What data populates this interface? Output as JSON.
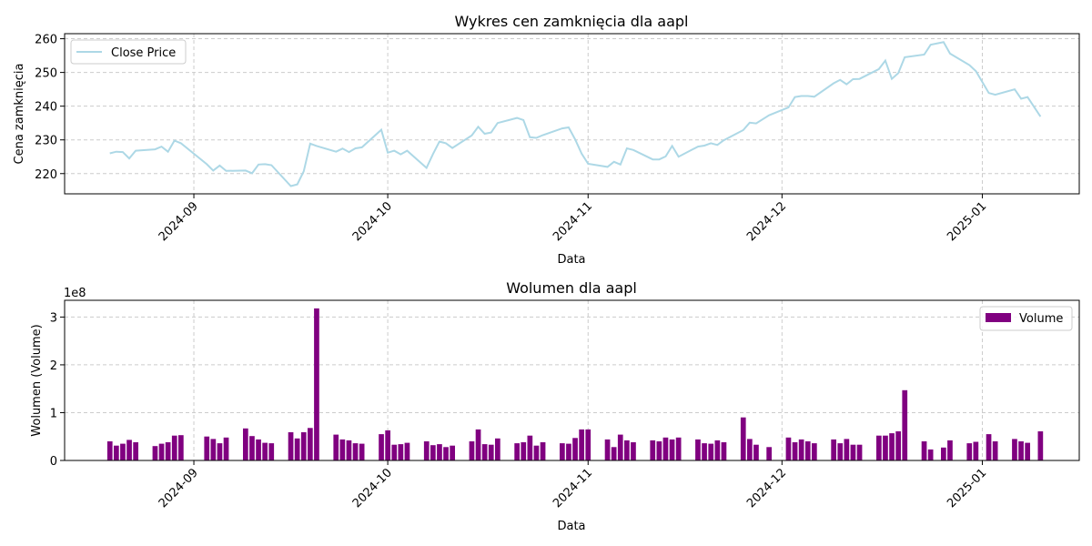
{
  "chart_data": [
    {
      "type": "line",
      "title": "Wykres cen zamknięcia dla aapl",
      "xlabel": "Data",
      "ylabel": "Cena zamknięcia",
      "ylim": [
        214,
        261.5
      ],
      "yticks": [
        220,
        230,
        240,
        250,
        260
      ],
      "xticks": [
        "2024-09",
        "2024-10",
        "2024-11",
        "2024-12",
        "2025-01"
      ],
      "grid": true,
      "legend": {
        "placement": "upper-left",
        "entries": [
          "Close Price"
        ]
      },
      "colors": {
        "line": "#add8e6"
      },
      "series": [
        {
          "name": "Close Price",
          "x": [
            "2024-08-19",
            "2024-08-20",
            "2024-08-21",
            "2024-08-22",
            "2024-08-23",
            "2024-08-26",
            "2024-08-27",
            "2024-08-28",
            "2024-08-29",
            "2024-08-30",
            "2024-09-03",
            "2024-09-04",
            "2024-09-05",
            "2024-09-06",
            "2024-09-09",
            "2024-09-10",
            "2024-09-11",
            "2024-09-12",
            "2024-09-13",
            "2024-09-16",
            "2024-09-17",
            "2024-09-18",
            "2024-09-19",
            "2024-09-20",
            "2024-09-23",
            "2024-09-24",
            "2024-09-25",
            "2024-09-26",
            "2024-09-27",
            "2024-09-30",
            "2024-10-01",
            "2024-10-02",
            "2024-10-03",
            "2024-10-04",
            "2024-10-07",
            "2024-10-08",
            "2024-10-09",
            "2024-10-10",
            "2024-10-11",
            "2024-10-14",
            "2024-10-15",
            "2024-10-16",
            "2024-10-17",
            "2024-10-18",
            "2024-10-21",
            "2024-10-22",
            "2024-10-23",
            "2024-10-24",
            "2024-10-25",
            "2024-10-28",
            "2024-10-29",
            "2024-10-30",
            "2024-10-31",
            "2024-11-01",
            "2024-11-04",
            "2024-11-05",
            "2024-11-06",
            "2024-11-07",
            "2024-11-08",
            "2024-11-11",
            "2024-11-12",
            "2024-11-13",
            "2024-11-14",
            "2024-11-15",
            "2024-11-18",
            "2024-11-19",
            "2024-11-20",
            "2024-11-21",
            "2024-11-22",
            "2024-11-25",
            "2024-11-26",
            "2024-11-27",
            "2024-11-29",
            "2024-12-02",
            "2024-12-03",
            "2024-12-04",
            "2024-12-05",
            "2024-12-06",
            "2024-12-09",
            "2024-12-10",
            "2024-12-11",
            "2024-12-12",
            "2024-12-13",
            "2024-12-16",
            "2024-12-17",
            "2024-12-18",
            "2024-12-19",
            "2024-12-20",
            "2024-12-23",
            "2024-12-24",
            "2024-12-26",
            "2024-12-27",
            "2024-12-30",
            "2024-12-31",
            "2025-01-02",
            "2025-01-03",
            "2025-01-06",
            "2025-01-07",
            "2025-01-08",
            "2025-01-10"
          ],
          "values": [
            226.0,
            226.5,
            226.4,
            224.5,
            226.8,
            227.2,
            228.0,
            226.5,
            229.8,
            229.0,
            222.8,
            220.9,
            222.4,
            220.8,
            220.9,
            220.1,
            222.7,
            222.8,
            222.5,
            216.3,
            216.8,
            220.7,
            228.9,
            228.2,
            226.5,
            227.4,
            226.4,
            227.5,
            227.8,
            233.0,
            226.2,
            226.8,
            225.7,
            226.8,
            221.7,
            225.8,
            229.5,
            229.0,
            227.6,
            231.3,
            233.9,
            231.8,
            232.2,
            235.0,
            236.5,
            235.9,
            230.8,
            230.6,
            231.4,
            233.4,
            233.7,
            230.1,
            225.9,
            222.9,
            222.0,
            223.5,
            222.7,
            227.5,
            227.0,
            224.2,
            224.2,
            225.1,
            228.2,
            225.0,
            228.0,
            228.3,
            229.0,
            228.5,
            229.9,
            232.9,
            235.1,
            234.9,
            237.3,
            239.6,
            242.7,
            243.0,
            243.0,
            242.8,
            246.8,
            247.8,
            246.5,
            248.0,
            248.1,
            251.0,
            253.5,
            248.1,
            249.8,
            254.5,
            255.3,
            258.2,
            259.0,
            255.6,
            252.2,
            250.4,
            243.9,
            243.4,
            245.0,
            242.2,
            242.7,
            236.9
          ]
        }
      ]
    },
    {
      "type": "bar",
      "title": "Wolumen dla aapl",
      "xlabel": "Data",
      "ylabel": "Wolumen (Volume)",
      "offset_label": "1e8",
      "ylim": [
        0,
        3.35
      ],
      "yticks": [
        0,
        1,
        2,
        3
      ],
      "xticks": [
        "2024-09",
        "2024-10",
        "2024-11",
        "2024-12",
        "2025-01"
      ],
      "grid": true,
      "legend": {
        "placement": "upper-right",
        "entries": [
          "Volume"
        ]
      },
      "colors": {
        "bar": "#800080"
      },
      "series": [
        {
          "name": "Volume",
          "x": [
            "2024-08-19",
            "2024-08-20",
            "2024-08-21",
            "2024-08-22",
            "2024-08-23",
            "2024-08-26",
            "2024-08-27",
            "2024-08-28",
            "2024-08-29",
            "2024-08-30",
            "2024-09-03",
            "2024-09-04",
            "2024-09-05",
            "2024-09-06",
            "2024-09-09",
            "2024-09-10",
            "2024-09-11",
            "2024-09-12",
            "2024-09-13",
            "2024-09-16",
            "2024-09-17",
            "2024-09-18",
            "2024-09-19",
            "2024-09-20",
            "2024-09-23",
            "2024-09-24",
            "2024-09-25",
            "2024-09-26",
            "2024-09-27",
            "2024-09-30",
            "2024-10-01",
            "2024-10-02",
            "2024-10-03",
            "2024-10-04",
            "2024-10-07",
            "2024-10-08",
            "2024-10-09",
            "2024-10-10",
            "2024-10-11",
            "2024-10-14",
            "2024-10-15",
            "2024-10-16",
            "2024-10-17",
            "2024-10-18",
            "2024-10-21",
            "2024-10-22",
            "2024-10-23",
            "2024-10-24",
            "2024-10-25",
            "2024-10-28",
            "2024-10-29",
            "2024-10-30",
            "2024-10-31",
            "2024-11-01",
            "2024-11-04",
            "2024-11-05",
            "2024-11-06",
            "2024-11-07",
            "2024-11-08",
            "2024-11-11",
            "2024-11-12",
            "2024-11-13",
            "2024-11-14",
            "2024-11-15",
            "2024-11-18",
            "2024-11-19",
            "2024-11-20",
            "2024-11-21",
            "2024-11-22",
            "2024-11-25",
            "2024-11-26",
            "2024-11-27",
            "2024-11-29",
            "2024-12-02",
            "2024-12-03",
            "2024-12-04",
            "2024-12-05",
            "2024-12-06",
            "2024-12-09",
            "2024-12-10",
            "2024-12-11",
            "2024-12-12",
            "2024-12-13",
            "2024-12-16",
            "2024-12-17",
            "2024-12-18",
            "2024-12-19",
            "2024-12-20",
            "2024-12-23",
            "2024-12-24",
            "2024-12-26",
            "2024-12-27",
            "2024-12-30",
            "2024-12-31",
            "2025-01-02",
            "2025-01-03",
            "2025-01-06",
            "2025-01-07",
            "2025-01-08",
            "2025-01-10"
          ],
          "values": [
            0.4,
            0.31,
            0.35,
            0.43,
            0.38,
            0.3,
            0.35,
            0.38,
            0.52,
            0.53,
            0.5,
            0.45,
            0.36,
            0.48,
            0.67,
            0.51,
            0.44,
            0.37,
            0.36,
            0.59,
            0.46,
            0.59,
            0.68,
            3.18,
            0.54,
            0.44,
            0.42,
            0.36,
            0.35,
            0.55,
            0.63,
            0.33,
            0.34,
            0.37,
            0.4,
            0.32,
            0.34,
            0.28,
            0.31,
            0.4,
            0.65,
            0.34,
            0.33,
            0.46,
            0.36,
            0.38,
            0.52,
            0.31,
            0.38,
            0.36,
            0.35,
            0.47,
            0.65,
            0.65,
            0.44,
            0.28,
            0.54,
            0.42,
            0.38,
            0.42,
            0.4,
            0.48,
            0.44,
            0.48,
            0.44,
            0.36,
            0.35,
            0.42,
            0.38,
            0.9,
            0.45,
            0.33,
            0.28,
            0.48,
            0.38,
            0.44,
            0.4,
            0.36,
            0.44,
            0.36,
            0.45,
            0.33,
            0.33,
            0.52,
            0.52,
            0.57,
            0.61,
            1.47,
            0.4,
            0.23,
            0.27,
            0.42,
            0.36,
            0.39,
            0.55,
            0.4,
            0.45,
            0.4,
            0.37,
            0.61
          ]
        }
      ]
    }
  ]
}
